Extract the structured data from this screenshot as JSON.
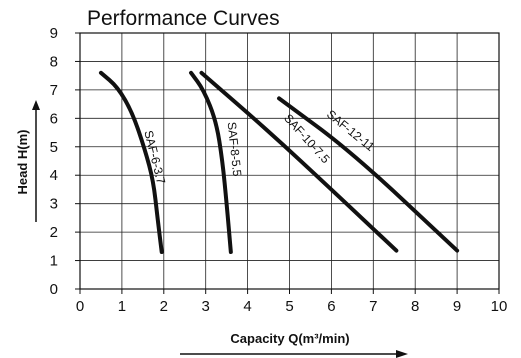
{
  "chart_data": {
    "type": "line",
    "title": "Performance Curves",
    "xlabel": "Capacity Q(m³/min)",
    "ylabel": "Head H(m)",
    "xlim": [
      0,
      10
    ],
    "ylim": [
      0,
      9
    ],
    "x_ticks": [
      0,
      1,
      2,
      3,
      4,
      5,
      6,
      7,
      8,
      9,
      10
    ],
    "y_ticks": [
      0,
      1,
      2,
      3,
      4,
      5,
      6,
      7,
      8,
      9
    ],
    "grid": true,
    "legend": "none (curves labeled inline)",
    "series": [
      {
        "name": "SAF-6-3.7",
        "points": [
          [
            0.5,
            7.6
          ],
          [
            0.9,
            7.1
          ],
          [
            1.25,
            6.2
          ],
          [
            1.55,
            4.9
          ],
          [
            1.75,
            3.8
          ],
          [
            1.85,
            2.5
          ],
          [
            1.95,
            1.3
          ]
        ]
      },
      {
        "name": "SAF-8-5.5",
        "points": [
          [
            2.65,
            7.6
          ],
          [
            2.95,
            7.0
          ],
          [
            3.25,
            5.9
          ],
          [
            3.4,
            4.5
          ],
          [
            3.5,
            3.0
          ],
          [
            3.6,
            1.3
          ]
        ]
      },
      {
        "name": "SAF-10-7.5",
        "points": [
          [
            2.9,
            7.6
          ],
          [
            4.5,
            5.55
          ],
          [
            6.0,
            3.5
          ],
          [
            7.55,
            1.35
          ]
        ]
      },
      {
        "name": "SAF-12-11",
        "points": [
          [
            4.75,
            6.7
          ],
          [
            6.5,
            4.8
          ],
          [
            9.0,
            1.35
          ]
        ]
      }
    ]
  }
}
